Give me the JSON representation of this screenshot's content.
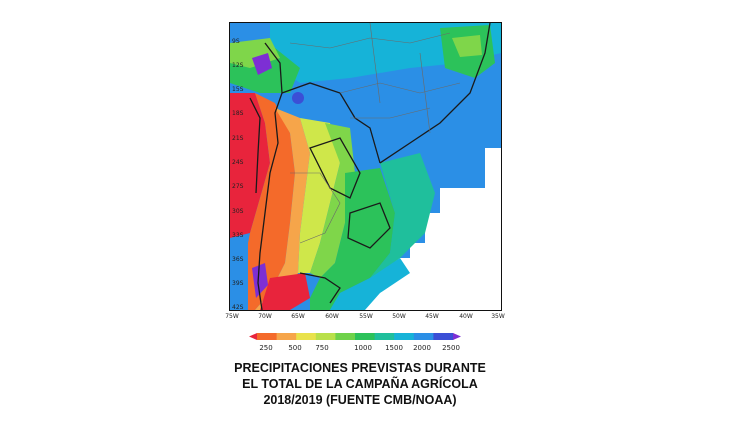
{
  "map": {
    "lat_labels": [
      "9S",
      "12S",
      "15S",
      "18S",
      "21S",
      "24S",
      "27S",
      "30S",
      "33S",
      "36S",
      "39S",
      "42S"
    ],
    "lon_labels": [
      "75W",
      "70W",
      "65W",
      "60W",
      "55W",
      "50W",
      "45W",
      "40W",
      "35W"
    ],
    "colors": {
      "red": "#e8243c",
      "orange": "#f46a2a",
      "lightorange": "#f6a54a",
      "yellow": "#cfe74a",
      "lightgreen": "#7fd64a",
      "green": "#2cc25a",
      "teal": "#1fbf9c",
      "cyan": "#16b3d8",
      "blue": "#2b8fe6",
      "darkblue": "#3b4fd6",
      "purple": "#7d2fd4",
      "border": "#1a1a1a",
      "state": "#6a6a6a"
    }
  },
  "legend": {
    "ticks": [
      "250",
      "500",
      "750",
      "1000",
      "1500",
      "2000",
      "2500"
    ],
    "colors": [
      "#e8243c",
      "#f46a2a",
      "#f6a54a",
      "#e9e24b",
      "#b9e04a",
      "#6fd24a",
      "#2cc25a",
      "#1fbf9c",
      "#16b3d8",
      "#2b8fe6",
      "#3b4fd6",
      "#7d2fd4"
    ]
  },
  "caption": {
    "line1": "PRECIPITACIONES PREVISTAS DURANTE",
    "line2": "EL TOTAL DE LA CAMPAÑA AGRÍCOLA",
    "line3": "2018/2019 (FUENTE CMB/NOAA)"
  }
}
